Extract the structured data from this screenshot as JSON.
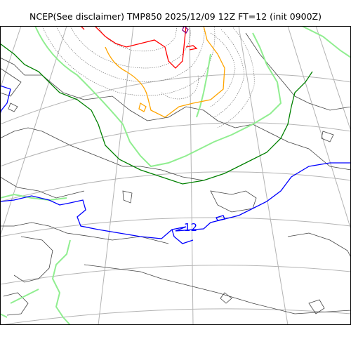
{
  "title": "NCEP(See disclaimer) TMP850 2025/12/09 12Z FT=12 (init 0900Z)",
  "contour_labels": {
    "blue_12": "12"
  },
  "colors": {
    "coast": "#444444",
    "grid": "#b3b3b3",
    "isotherm_fine": "#666666",
    "isotherm_blue": "#0000ff",
    "isotherm_green": "#008000",
    "isotherm_lightgreen": "#90ee90",
    "isotherm_orange": "#ffa500",
    "isotherm_red": "#ff0000",
    "isotherm_purple": "#800080"
  }
}
